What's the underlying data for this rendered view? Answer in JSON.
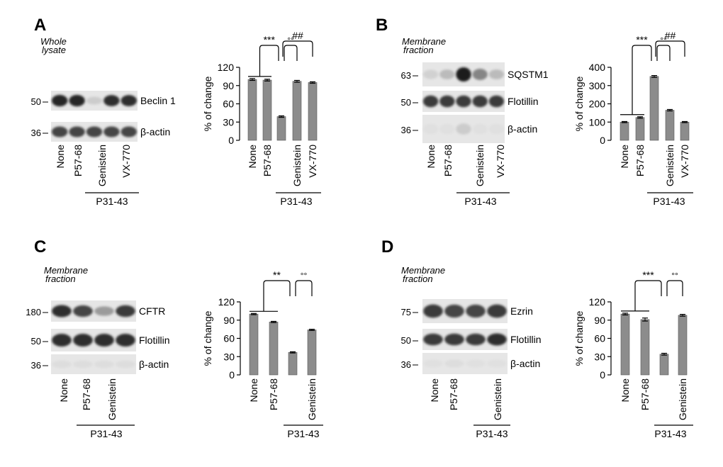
{
  "colors": {
    "bar": "#8c8c8c",
    "bar_stroke": "#555555",
    "text": "#000000"
  },
  "panels": [
    {
      "letter": "A",
      "blot": {
        "title_lines": [
          "Whole",
          "lysate"
        ],
        "lanes": [
          "None",
          "P57-68",
          "Genistein",
          "VX-770"
        ],
        "group_label": "P31-43",
        "bands": [
          {
            "marker": "50",
            "name": "Beclin 1",
            "intensity": [
              0.9,
              0.9,
              0.12,
              0.85,
              0.85
            ]
          },
          {
            "marker": "36",
            "name": "β-actin",
            "intensity": [
              0.75,
              0.75,
              0.75,
              0.75,
              0.75
            ]
          }
        ]
      },
      "chart": {
        "type": "bar",
        "categories": [
          "None",
          "P57-68",
          "",
          "Genistein",
          "VX-770"
        ],
        "values": [
          100,
          99,
          39,
          97,
          95
        ],
        "errors": [
          1.5,
          1.5,
          1.2,
          1.5,
          1.2
        ],
        "ylabel": "% of change",
        "ylim": [
          0,
          120
        ],
        "ticks": [
          0,
          30,
          60,
          90,
          120
        ],
        "group_label": "P31-43",
        "sig": [
          {
            "label": "***",
            "from": [
              0,
              1
            ],
            "to": 2
          },
          {
            "label": "°°",
            "from": 2,
            "to": 3
          },
          {
            "label": "##",
            "from": 2,
            "to": 4
          }
        ]
      }
    },
    {
      "letter": "B",
      "blot": {
        "title_lines": [
          "Membrane",
          "fraction"
        ],
        "lanes": [
          "None",
          "P57-68",
          "Genistein",
          "VX-770"
        ],
        "group_label": "P31-43",
        "bands": [
          {
            "marker": "63",
            "name": "SQSTM1",
            "intensity": [
              0.1,
              0.2,
              0.95,
              0.45,
              0.2
            ]
          },
          {
            "marker": "50",
            "name": "Flotillin",
            "intensity": [
              0.8,
              0.8,
              0.8,
              0.8,
              0.8
            ]
          },
          {
            "marker": "36",
            "name": "β-actin",
            "intensity": [
              0.03,
              0.03,
              0.12,
              0.03,
              0.03
            ]
          }
        ]
      },
      "chart": {
        "type": "bar",
        "categories": [
          "None",
          "P57-68",
          "",
          "Genistein",
          "VX-770"
        ],
        "values": [
          100,
          125,
          350,
          165,
          100
        ],
        "errors": [
          3,
          4,
          5,
          4,
          3
        ],
        "ylabel": "% of change",
        "ylim": [
          0,
          400
        ],
        "ticks": [
          0,
          100,
          200,
          300,
          400
        ],
        "group_label": "P31-43",
        "sig": [
          {
            "label": "***",
            "from": [
              0,
              1
            ],
            "to": 2
          },
          {
            "label": "°°",
            "from": 2,
            "to": 3
          },
          {
            "label": "##",
            "from": 2,
            "to": 4
          }
        ]
      }
    },
    {
      "letter": "C",
      "blot": {
        "title_lines": [
          "Membrane",
          "fraction"
        ],
        "lanes": [
          "None",
          "P57-68",
          "Genistein"
        ],
        "group_label": "P31-43",
        "bands": [
          {
            "marker": "180",
            "name": "CFTR",
            "intensity": [
              0.85,
              0.75,
              0.35,
              0.8
            ]
          },
          {
            "marker": "50",
            "name": "Flotillin",
            "intensity": [
              0.85,
              0.85,
              0.85,
              0.85
            ]
          },
          {
            "marker": "36",
            "name": "β-actin",
            "intensity": [
              0.04,
              0.04,
              0.04,
              0.04
            ]
          }
        ]
      },
      "chart": {
        "type": "bar",
        "categories": [
          "None",
          "P57-68",
          "",
          "Genistein"
        ],
        "values": [
          100,
          87,
          37,
          74
        ],
        "errors": [
          1,
          1,
          1,
          1
        ],
        "ylabel": "% of change",
        "ylim": [
          0,
          120
        ],
        "ticks": [
          0,
          30,
          60,
          90,
          120
        ],
        "group_label": "P31-43",
        "sig": [
          {
            "label": "**",
            "from": [
              0,
              1
            ],
            "to": 2
          },
          {
            "label": "°°",
            "from": 2,
            "to": 3
          }
        ]
      }
    },
    {
      "letter": "D",
      "blot": {
        "title_lines": [
          "Membrane",
          "fraction"
        ],
        "lanes": [
          "None",
          "P57-68",
          "Genistein"
        ],
        "group_label": "P31-43",
        "bands": [
          {
            "marker": "75",
            "name": "Ezrin",
            "intensity": [
              0.8,
              0.75,
              0.75,
              0.8
            ]
          },
          {
            "marker": "50",
            "name": "Flotillin",
            "intensity": [
              0.8,
              0.8,
              0.8,
              0.85
            ]
          },
          {
            "marker": "36",
            "name": "β-actin",
            "intensity": [
              0.03,
              0.04,
              0.03,
              0.03
            ]
          }
        ]
      },
      "chart": {
        "type": "bar",
        "categories": [
          "None",
          "P57-68",
          "",
          "Genistein"
        ],
        "values": [
          100,
          91,
          34,
          98
        ],
        "errors": [
          1.5,
          2.5,
          1.5,
          1.5
        ],
        "ylabel": "% of change",
        "ylim": [
          0,
          120
        ],
        "ticks": [
          0,
          30,
          60,
          90,
          120
        ],
        "group_label": "P31-43",
        "sig": [
          {
            "label": "***",
            "from": [
              0,
              1
            ],
            "to": 2
          },
          {
            "label": "°°",
            "from": 2,
            "to": 3
          }
        ]
      }
    }
  ],
  "chart_data": [
    {
      "type": "bar",
      "categories": [
        "None",
        "P57-68",
        "P31-43",
        "P31-43 + Genistein",
        "P31-43 + VX-770"
      ],
      "values": [
        100,
        99,
        39,
        97,
        95
      ],
      "ylabel": "% of change",
      "ylim": [
        0,
        120
      ]
    },
    {
      "type": "bar",
      "categories": [
        "None",
        "P57-68",
        "P31-43",
        "P31-43 + Genistein",
        "P31-43 + VX-770"
      ],
      "values": [
        100,
        125,
        350,
        165,
        100
      ],
      "ylabel": "% of change",
      "ylim": [
        0,
        400
      ]
    },
    {
      "type": "bar",
      "categories": [
        "None",
        "P57-68",
        "P31-43",
        "P31-43 + Genistein"
      ],
      "values": [
        100,
        87,
        37,
        74
      ],
      "ylabel": "% of change",
      "ylim": [
        0,
        120
      ]
    },
    {
      "type": "bar",
      "categories": [
        "None",
        "P57-68",
        "P31-43",
        "P31-43 + Genistein"
      ],
      "values": [
        100,
        91,
        34,
        98
      ],
      "ylabel": "% of change",
      "ylim": [
        0,
        120
      ]
    }
  ]
}
